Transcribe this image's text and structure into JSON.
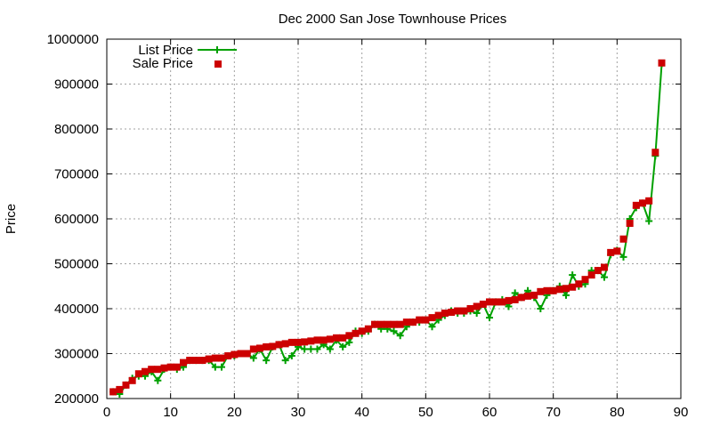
{
  "chart_data": {
    "type": "line",
    "title": "Dec 2000 San Jose Townhouse Prices",
    "xlabel": "",
    "ylabel": "Price",
    "xlim": [
      0,
      90
    ],
    "ylim": [
      200000,
      1000000
    ],
    "x_ticks": [
      0,
      10,
      20,
      30,
      40,
      50,
      60,
      70,
      80,
      90
    ],
    "y_ticks": [
      200000,
      300000,
      400000,
      500000,
      600000,
      700000,
      800000,
      900000,
      1000000
    ],
    "grid": true,
    "legend_position": "top-left",
    "series": [
      {
        "name": "List Price",
        "style": "line-plus",
        "color": "#00a000",
        "x": [
          1,
          2,
          3,
          4,
          5,
          6,
          7,
          8,
          9,
          10,
          11,
          12,
          13,
          14,
          15,
          16,
          17,
          18,
          19,
          20,
          21,
          22,
          23,
          24,
          25,
          26,
          27,
          28,
          29,
          30,
          31,
          32,
          33,
          34,
          35,
          36,
          37,
          38,
          39,
          40,
          41,
          42,
          43,
          44,
          45,
          46,
          47,
          48,
          49,
          50,
          51,
          52,
          53,
          54,
          55,
          56,
          57,
          58,
          59,
          60,
          61,
          62,
          63,
          64,
          65,
          66,
          67,
          68,
          69,
          70,
          71,
          72,
          73,
          74,
          75,
          76,
          77,
          78,
          79,
          80,
          81,
          82,
          83,
          84,
          85,
          86,
          87
        ],
        "y": [
          215000,
          210000,
          230000,
          245000,
          250000,
          250000,
          260000,
          240000,
          265000,
          270000,
          265000,
          270000,
          285000,
          285000,
          285000,
          285000,
          270000,
          270000,
          295000,
          295000,
          300000,
          300000,
          290000,
          310000,
          285000,
          315000,
          320000,
          285000,
          295000,
          315000,
          310000,
          310000,
          310000,
          320000,
          310000,
          330000,
          315000,
          325000,
          350000,
          345000,
          350000,
          365000,
          355000,
          355000,
          350000,
          340000,
          360000,
          370000,
          370000,
          375000,
          360000,
          375000,
          385000,
          395000,
          390000,
          390000,
          395000,
          390000,
          410000,
          380000,
          415000,
          420000,
          405000,
          435000,
          425000,
          440000,
          425000,
          400000,
          430000,
          440000,
          450000,
          430000,
          475000,
          450000,
          455000,
          485000,
          485000,
          470000,
          520000,
          530000,
          515000,
          600000,
          625000,
          635000,
          595000,
          740000,
          945000
        ]
      },
      {
        "name": "Sale Price",
        "style": "square",
        "color": "#cc0000",
        "x": [
          1,
          2,
          3,
          4,
          5,
          6,
          7,
          8,
          9,
          10,
          11,
          12,
          13,
          14,
          15,
          16,
          17,
          18,
          19,
          20,
          21,
          22,
          23,
          24,
          25,
          26,
          27,
          28,
          29,
          30,
          31,
          32,
          33,
          34,
          35,
          36,
          37,
          38,
          39,
          40,
          41,
          42,
          43,
          44,
          45,
          46,
          47,
          48,
          49,
          50,
          51,
          52,
          53,
          54,
          55,
          56,
          57,
          58,
          59,
          60,
          61,
          62,
          63,
          64,
          65,
          66,
          67,
          68,
          69,
          70,
          71,
          72,
          73,
          74,
          75,
          76,
          77,
          78,
          79,
          80,
          81,
          82,
          83,
          84,
          85,
          86,
          87
        ],
        "y": [
          215000,
          220000,
          230000,
          240000,
          255000,
          260000,
          265000,
          265000,
          268000,
          270000,
          270000,
          280000,
          285000,
          285000,
          285000,
          288000,
          290000,
          290000,
          295000,
          298000,
          300000,
          300000,
          310000,
          312000,
          315000,
          316000,
          320000,
          322000,
          325000,
          325000,
          326000,
          328000,
          330000,
          330000,
          332000,
          335000,
          335000,
          340000,
          345000,
          350000,
          355000,
          365000,
          365000,
          365000,
          365000,
          365000,
          370000,
          370000,
          375000,
          375000,
          380000,
          385000,
          390000,
          392000,
          395000,
          395000,
          400000,
          405000,
          410000,
          415000,
          415000,
          415000,
          418000,
          420000,
          425000,
          428000,
          430000,
          438000,
          440000,
          440000,
          443000,
          445000,
          448000,
          455000,
          465000,
          475000,
          485000,
          492000,
          525000,
          528000,
          555000,
          590000,
          630000,
          635000,
          640000,
          748000,
          947000
        ]
      }
    ]
  }
}
